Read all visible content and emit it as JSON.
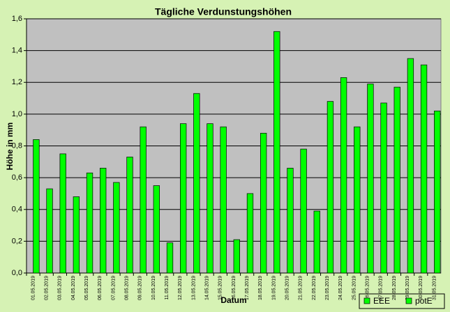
{
  "chart_data": {
    "type": "bar",
    "title": "Tägliche Verdunstungshöhen",
    "x_label": "Datum",
    "y_label": "Höhe in mm",
    "categories": [
      "01.05.2019",
      "02.05.2019",
      "03.05.2019",
      "04.05.2019",
      "05.05.2019",
      "06.05.2019",
      "07.05.2019",
      "08.05.2019",
      "09.05.2019",
      "10.05.2019",
      "11.05.2019",
      "12.05.2019",
      "13.05.2019",
      "14.05.2019",
      "15.05.2019",
      "16.05.2019",
      "17.05.2019",
      "18.05.2019",
      "19.05.2019",
      "20.05.2019",
      "21.05.2019",
      "22.05.2019",
      "23.05.2019",
      "24.05.2019",
      "25.05.2019",
      "26.05.2019",
      "27.05.2019",
      "28.05.2019",
      "29.05.2019",
      "30.05.2019",
      "31.05.2019"
    ],
    "series": [
      {
        "name": "EEE",
        "color": "#00ff00",
        "values": [
          null,
          null,
          null,
          null,
          null,
          null,
          null,
          null,
          null,
          null,
          null,
          null,
          null,
          null,
          null,
          null,
          null,
          null,
          null,
          null,
          null,
          null,
          null,
          null,
          null,
          null,
          null,
          null,
          null,
          null,
          null
        ]
      },
      {
        "name": "potE",
        "color": "#00ff00",
        "values": [
          0.84,
          0.53,
          0.75,
          0.48,
          0.63,
          0.66,
          0.57,
          0.73,
          0.92,
          0.55,
          0.19,
          0.94,
          1.13,
          0.94,
          0.92,
          0.21,
          0.5,
          0.88,
          1.52,
          0.66,
          0.78,
          0.39,
          1.08,
          1.23,
          0.92,
          1.19,
          1.07,
          1.17,
          1.35,
          1.31,
          1.02
        ]
      }
    ],
    "ylim": [
      0,
      1.6
    ],
    "yticks": [
      {
        "value": 0,
        "label": "0,0"
      },
      {
        "value": 0.2,
        "label": "0,2"
      },
      {
        "value": 0.4,
        "label": "0,4"
      },
      {
        "value": 0.6,
        "label": "0,6"
      },
      {
        "value": 0.8,
        "label": "0,8"
      },
      {
        "value": 1,
        "label": "1,0"
      },
      {
        "value": 1.2,
        "label": "1,2"
      },
      {
        "value": 1.4,
        "label": "1,4"
      },
      {
        "value": 1.6,
        "label": "1,6"
      }
    ],
    "grid": true
  }
}
